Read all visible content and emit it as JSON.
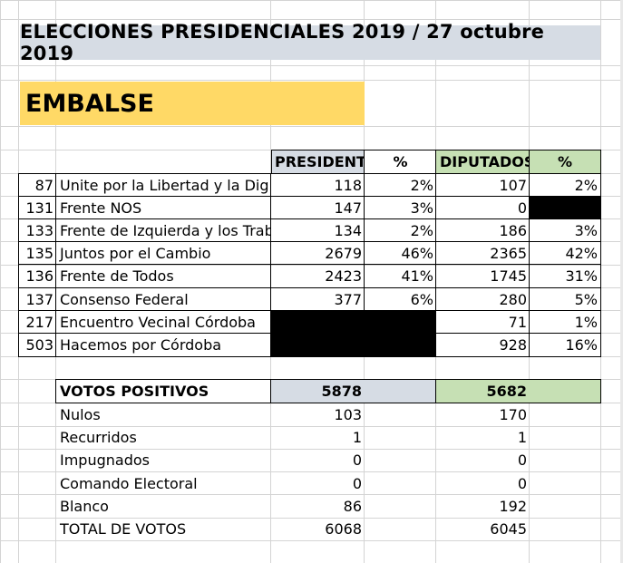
{
  "title": "ELECCIONES PRESIDENCIALES 2019 / 27 octubre 2019",
  "location": "EMBALSE",
  "colors": {
    "title_bg": "#d6dce4",
    "location_bg": "#ffd966",
    "president_bg": "#d6dce4",
    "diputados_bg": "#c6e0b4",
    "grid": "#d4d4d4"
  },
  "headers": {
    "presidente": "PRESIDENTE",
    "pct1": "%",
    "diputados": "DIPUTADOS",
    "pct2": "%"
  },
  "rows": [
    {
      "num": "87",
      "party": "Unite por la Libertad y la Dig.",
      "pres": "118",
      "pres_pct": "2%",
      "dip": "107",
      "dip_pct": "2%"
    },
    {
      "num": "131",
      "party": "Frente NOS",
      "pres": "147",
      "pres_pct": "3%",
      "dip": "0",
      "dip_pct": ""
    },
    {
      "num": "133",
      "party": "Frente de Izquierda y los Trab.",
      "pres": "134",
      "pres_pct": "2%",
      "dip": "186",
      "dip_pct": "3%"
    },
    {
      "num": "135",
      "party": "Juntos por el Cambio",
      "pres": "2679",
      "pres_pct": "46%",
      "dip": "2365",
      "dip_pct": "42%"
    },
    {
      "num": "136",
      "party": "Frente de Todos",
      "pres": "2423",
      "pres_pct": "41%",
      "dip": "1745",
      "dip_pct": "31%"
    },
    {
      "num": "137",
      "party": "Consenso Federal",
      "pres": "377",
      "pres_pct": "6%",
      "dip": "280",
      "dip_pct": "5%"
    },
    {
      "num": "217",
      "party": "Encuentro Vecinal Córdoba",
      "pres": "",
      "pres_pct": "",
      "dip": "71",
      "dip_pct": "1%"
    },
    {
      "num": "503",
      "party": "Hacemos por Córdoba",
      "pres": "",
      "pres_pct": "",
      "dip": "928",
      "dip_pct": "16%"
    }
  ],
  "positivos": {
    "label": "VOTOS POSITIVOS",
    "pres": "5878",
    "dip": "5682"
  },
  "summary": [
    {
      "label": "Nulos",
      "pres": "103",
      "dip": "170"
    },
    {
      "label": "Recurridos",
      "pres": "1",
      "dip": "1"
    },
    {
      "label": "Impugnados",
      "pres": "0",
      "dip": "0"
    },
    {
      "label": "Comando Electoral",
      "pres": "0",
      "dip": "0"
    },
    {
      "label": "Blanco",
      "pres": "86",
      "dip": "192"
    },
    {
      "label": "TOTAL DE VOTOS",
      "pres": "6068",
      "dip": "6045"
    }
  ]
}
